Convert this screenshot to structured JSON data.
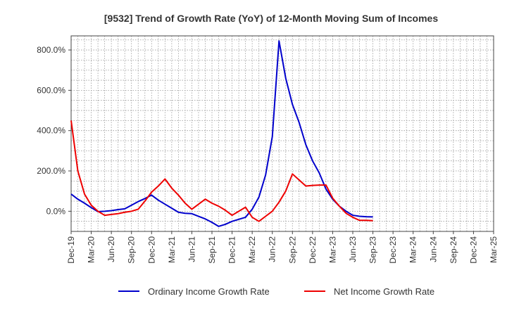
{
  "chart_data": {
    "type": "line",
    "title": "[9532]  Trend of Growth Rate (YoY) of 12-Month Moving Sum of Incomes",
    "xlabel": "",
    "ylabel": "",
    "ylim": [
      -100,
      870
    ],
    "yticks": [
      0,
      200,
      400,
      600,
      800
    ],
    "ytick_labels": [
      "0.0%",
      "200.0%",
      "400.0%",
      "600.0%",
      "800.0%"
    ],
    "xtick_labels": [
      "Dec-19",
      "Mar-20",
      "Jun-20",
      "Sep-20",
      "Dec-20",
      "Mar-21",
      "Jun-21",
      "Sep-21",
      "Dec-21",
      "Mar-22",
      "Jun-22",
      "Sep-22",
      "Dec-22",
      "Mar-23",
      "Jun-23",
      "Sep-23",
      "Dec-23",
      "Mar-24",
      "Jun-24",
      "Sep-24",
      "Dec-24",
      "Mar-25"
    ],
    "grid": true,
    "legend_position": "bottom",
    "series": [
      {
        "name": "Ordinary Income Growth Rate",
        "color": "#0000cc",
        "values": [
          85,
          60,
          40,
          18,
          -2,
          0,
          3,
          8,
          12,
          30,
          48,
          63,
          80,
          55,
          35,
          15,
          -5,
          -10,
          -12,
          -25,
          -38,
          -55,
          -75,
          -65,
          -50,
          -40,
          -30,
          10,
          70,
          180,
          370,
          845,
          660,
          530,
          440,
          330,
          250,
          190,
          110,
          60,
          25,
          0,
          -20,
          -25,
          -27,
          -28
        ]
      },
      {
        "name": "Net Income Growth Rate",
        "color": "#ee0000",
        "values": [
          450,
          200,
          85,
          30,
          0,
          -20,
          -16,
          -12,
          -5,
          0,
          10,
          50,
          95,
          125,
          160,
          115,
          80,
          40,
          10,
          35,
          60,
          40,
          25,
          5,
          -20,
          0,
          20,
          -30,
          -50,
          -25,
          0,
          45,
          100,
          185,
          155,
          125,
          128,
          130,
          130,
          65,
          25,
          -10,
          -30,
          -45,
          -45,
          -47
        ]
      }
    ]
  }
}
